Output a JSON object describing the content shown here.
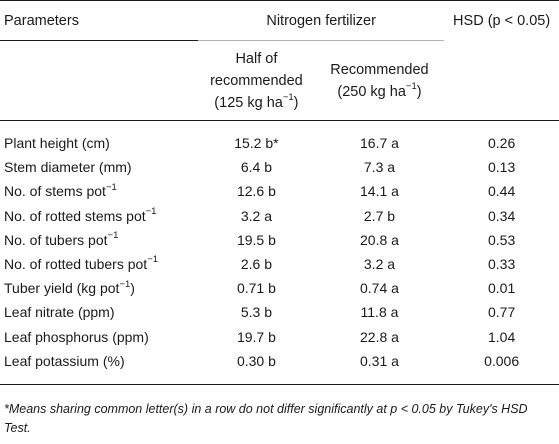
{
  "header": {
    "parameters": "Parameters",
    "nitrogen_fertilizer": "Nitrogen fertilizer",
    "hsd": "HSD (p < 0.05)",
    "half_line1": "Half of",
    "half_line2": "recommended",
    "half_line3": "(125 kg ha",
    "half_sup": "−1",
    "half_close": ")",
    "rec_line1": "Recommended",
    "rec_line2": "(250 kg ha",
    "rec_sup": "−1",
    "rec_close": ")"
  },
  "rows": [
    {
      "param": "Plant height (cm)",
      "sup": "",
      "param_suffix": "",
      "half": "15.2 b*",
      "rec": "16.7 a",
      "hsd": "0.26"
    },
    {
      "param": "Stem diameter (mm)",
      "sup": "",
      "param_suffix": "",
      "half": "6.4 b",
      "rec": "7.3 a",
      "hsd": "0.13"
    },
    {
      "param": "No. of stems pot",
      "sup": "−1",
      "param_suffix": "",
      "half": "12.6 b",
      "rec": "14.1 a",
      "hsd": "0.44"
    },
    {
      "param": "No. of rotted stems pot",
      "sup": "−1",
      "param_suffix": "",
      "half": "3.2 a",
      "rec": "2.7 b",
      "hsd": "0.34"
    },
    {
      "param": "No. of tubers pot",
      "sup": "−1",
      "param_suffix": "",
      "half": "19.5 b",
      "rec": "20.8 a",
      "hsd": "0.53"
    },
    {
      "param": "No. of rotted tubers pot",
      "sup": "−1",
      "param_suffix": "",
      "half": "2.6 b",
      "rec": "3.2 a",
      "hsd": "0.33"
    },
    {
      "param": "Tuber yield (kg pot",
      "sup": "−1",
      "param_suffix": ")",
      "half": "0.71 b",
      "rec": "0.74 a",
      "hsd": "0.01"
    },
    {
      "param": "Leaf nitrate (ppm)",
      "sup": "",
      "param_suffix": "",
      "half": "5.3 b",
      "rec": "11.8 a",
      "hsd": "0.77"
    },
    {
      "param": "Leaf phosphorus (ppm)",
      "sup": "",
      "param_suffix": "",
      "half": "19.7 b",
      "rec": "22.8 a",
      "hsd": "1.04"
    },
    {
      "param": "Leaf potassium (%)",
      "sup": "",
      "param_suffix": "",
      "half": "0.30 b",
      "rec": "0.31 a",
      "hsd": "0.006"
    }
  ],
  "footnote": "*Means sharing common letter(s) in a row do not differ significantly at p < 0.05 by Tukey's HSD Test."
}
